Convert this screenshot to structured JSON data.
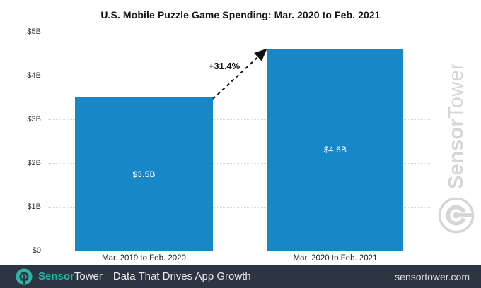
{
  "title": "U.S. Mobile Puzzle Game Spending: Mar. 2020 to Feb. 2021",
  "chart_data": {
    "type": "bar",
    "title": "U.S. Mobile Puzzle Game Spending: Mar. 2020 to Feb. 2021",
    "categories": [
      "Mar. 2019 to Feb. 2020",
      "Mar. 2020 to Feb. 2021"
    ],
    "values": [
      3.5,
      4.6
    ],
    "unit": "billions of U.S. dollars",
    "bar_labels": [
      "$3.5B",
      "$4.6B"
    ],
    "annotation": "+31.4%",
    "ytick_labels": [
      "$5B",
      "$4B",
      "$3B",
      "$2B",
      "$1B",
      "$0"
    ],
    "ylim": [
      0,
      5
    ],
    "xlabel": "",
    "ylabel": "",
    "grid": "horizontal-dotted",
    "legend": "none",
    "bar_color": "#1787c8"
  },
  "watermark": {
    "brand_first": "Sensor",
    "brand_second": "Tower"
  },
  "footer": {
    "brand_first": "Sensor",
    "brand_second": "Tower",
    "tagline": "Data That Drives App Growth",
    "url": "sensortower.com",
    "bg_color": "#2e3542",
    "teal": "#2cb3a4"
  }
}
